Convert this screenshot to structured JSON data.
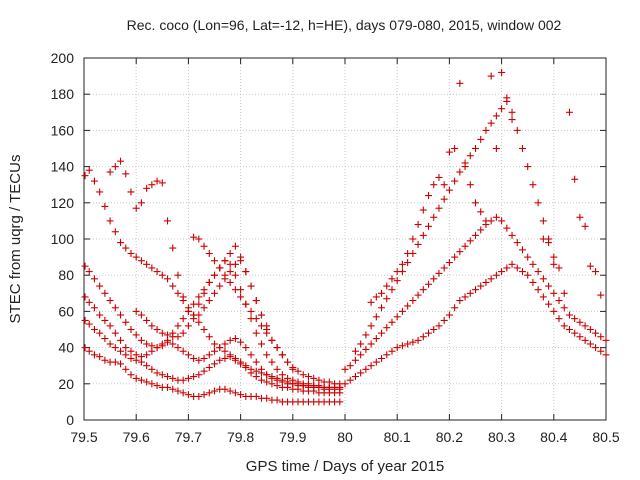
{
  "chart_data": {
    "type": "scatter",
    "title": "Rec. coco (Lon=96, Lat=-12, h=HE), days 079-080, 2015, window 002",
    "xlabel": "GPS time / Days of year 2015",
    "ylabel": "STEC from uqrg / TECUs",
    "xlim": [
      79.5,
      80.5
    ],
    "ylim": [
      0,
      200
    ],
    "xticks": [
      "79.5",
      "79.6",
      "79.7",
      "79.8",
      "79.9",
      "80",
      "80.1",
      "80.2",
      "80.3",
      "80.4",
      "80.5"
    ],
    "yticks": [
      "0",
      "20",
      "40",
      "60",
      "80",
      "100",
      "120",
      "140",
      "160",
      "180",
      "200"
    ],
    "grid": true,
    "marker": "+",
    "color": "#cc0000",
    "series": [
      {
        "x": [
          79.502,
          79.51,
          79.52,
          79.53,
          79.54,
          79.55,
          79.56,
          79.57,
          79.58,
          79.59,
          79.6,
          79.61,
          79.62,
          79.63,
          79.64,
          79.65,
          79.66,
          79.67,
          79.68,
          79.69,
          79.7,
          79.71,
          79.72,
          79.73,
          79.74,
          79.75,
          79.76,
          79.77,
          79.78,
          79.79,
          79.8,
          79.81,
          79.82,
          79.83,
          79.84,
          79.85,
          79.86,
          79.87,
          79.88,
          79.89,
          79.9,
          79.91,
          79.92,
          79.93,
          79.94,
          79.95,
          79.96,
          79.97,
          79.98,
          79.99
        ],
        "y": [
          40,
          38,
          36,
          35,
          33,
          32,
          32,
          31,
          28,
          25,
          23,
          22,
          21,
          20,
          19,
          18,
          18,
          17,
          16,
          15,
          14,
          13,
          13,
          14,
          15,
          16,
          17,
          17,
          16,
          15,
          14,
          13,
          13,
          13,
          12,
          12,
          11,
          11,
          10,
          10,
          10,
          10,
          10,
          10,
          10,
          10,
          10,
          10,
          10,
          10
        ]
      },
      {
        "x": [
          79.502,
          79.51,
          79.52,
          79.53,
          79.54,
          79.55,
          79.56,
          79.57,
          79.58,
          79.59,
          79.6,
          79.61,
          79.62,
          79.63,
          79.64,
          79.65,
          79.66,
          79.67,
          79.68,
          79.69,
          79.7,
          79.71,
          79.72,
          79.73,
          79.74,
          79.75,
          79.76,
          79.77,
          79.78,
          79.79,
          79.8,
          79.81,
          79.82,
          79.83,
          79.84,
          79.85,
          79.86,
          79.87,
          79.88,
          79.89,
          79.9,
          79.91,
          79.92,
          79.93,
          79.94,
          79.95,
          79.96,
          79.97,
          79.98,
          79.99
        ],
        "y": [
          55,
          53,
          50,
          48,
          45,
          42,
          40,
          38,
          36,
          34,
          33,
          32,
          30,
          28,
          26,
          25,
          24,
          23,
          22,
          22,
          23,
          24,
          25,
          27,
          29,
          31,
          33,
          34,
          35,
          33,
          31,
          29,
          26,
          24,
          22,
          21,
          20,
          19,
          18,
          18,
          17,
          17,
          16,
          16,
          16,
          15,
          15,
          15,
          15,
          15
        ]
      },
      {
        "x": [
          79.502,
          79.51,
          79.52,
          79.53,
          79.54,
          79.55,
          79.56,
          79.57,
          79.58,
          79.59,
          79.6,
          79.61,
          79.62,
          79.63,
          79.64,
          79.65,
          79.66,
          79.67,
          79.68,
          79.69,
          79.7,
          79.71,
          79.72,
          79.73,
          79.74,
          79.75,
          79.76,
          79.77,
          79.78,
          79.79,
          79.8,
          79.81,
          79.82,
          79.83,
          79.84,
          79.85,
          79.86,
          79.87,
          79.88,
          79.89,
          79.9,
          79.91,
          79.92,
          79.93,
          79.94,
          79.95,
          79.96,
          79.97,
          79.98,
          79.99
        ],
        "y": [
          68,
          65,
          62,
          58,
          55,
          52,
          48,
          44,
          40,
          38,
          36,
          35,
          36,
          38,
          40,
          42,
          43,
          42,
          40,
          38,
          36,
          34,
          33,
          34,
          36,
          38,
          40,
          42,
          44,
          45,
          43,
          40,
          36,
          32,
          28,
          25,
          23,
          22,
          21,
          20,
          20,
          19,
          19,
          18,
          18,
          18,
          17,
          17,
          17,
          17
        ]
      },
      {
        "x": [
          79.502,
          79.51,
          79.52,
          79.53,
          79.54,
          79.55,
          79.56,
          79.57,
          79.58,
          79.59,
          79.6,
          79.61,
          79.62,
          79.63,
          79.64,
          79.65,
          79.66,
          79.67,
          79.68,
          79.69,
          79.7,
          79.71,
          79.72,
          79.73,
          79.74,
          79.75,
          79.76,
          79.77,
          79.78,
          79.79,
          79.8,
          79.81,
          79.82,
          79.83,
          79.84,
          79.85,
          79.86,
          79.87,
          79.88,
          79.89,
          79.9,
          79.91,
          79.92,
          79.93,
          79.94,
          79.95,
          79.96,
          79.97,
          79.98,
          79.99
        ],
        "y": [
          85,
          82,
          78,
          74,
          70,
          66,
          62,
          58,
          54,
          50,
          47,
          44,
          42,
          41,
          40,
          41,
          44,
          48,
          52,
          56,
          60,
          64,
          68,
          72,
          76,
          80,
          84,
          88,
          86,
          80,
          72,
          64,
          56,
          48,
          42,
          36,
          32,
          28,
          25,
          23,
          22,
          21,
          20,
          20,
          19,
          19,
          18,
          18,
          18,
          18
        ]
      },
      {
        "x": [
          79.502,
          79.51,
          79.52,
          79.53,
          79.54,
          79.55,
          79.56,
          79.57,
          79.58,
          79.59,
          79.6,
          79.61,
          79.62,
          79.63,
          79.64,
          79.65,
          79.66,
          79.67,
          79.68,
          79.69,
          79.7,
          79.71,
          79.72,
          79.73,
          79.74,
          79.75,
          79.76,
          79.77,
          79.78,
          79.79,
          79.8,
          79.81,
          79.82,
          79.83,
          79.84,
          79.85,
          79.86,
          79.87,
          79.88,
          79.89,
          79.9,
          79.91,
          79.92,
          79.93,
          79.94,
          79.95,
          79.96,
          79.97,
          79.98,
          79.99
        ],
        "y": [
          135,
          138,
          132,
          126,
          118,
          110,
          104,
          98,
          95,
          92,
          90,
          88,
          86,
          84,
          82,
          80,
          78,
          74,
          70,
          66,
          62,
          58,
          54,
          50,
          46,
          42,
          40,
          38,
          36,
          34,
          32,
          30,
          28,
          27,
          26,
          25,
          24,
          23,
          22,
          21,
          20,
          20,
          19,
          19,
          19,
          18,
          18,
          18,
          18,
          18
        ]
      },
      {
        "x": [
          79.55,
          79.56,
          79.57,
          79.58,
          79.59,
          79.6,
          79.61,
          79.62,
          79.63,
          79.64,
          79.65,
          79.66,
          79.67,
          79.68,
          79.69,
          79.7,
          79.71,
          79.72,
          79.73,
          79.74,
          79.75,
          79.76,
          79.77,
          79.78,
          79.79,
          79.8,
          79.81,
          79.82,
          79.83,
          79.84,
          79.85
        ],
        "y": [
          137,
          140,
          143,
          136,
          126,
          117,
          120,
          128,
          130,
          132,
          131,
          110,
          95,
          80,
          68,
          60,
          56,
          58,
          62,
          66,
          70,
          74,
          78,
          82,
          86,
          88,
          82,
          74,
          66,
          58,
          52
        ]
      },
      {
        "x": [
          79.6,
          79.61,
          79.62,
          79.63,
          79.64,
          79.65,
          79.66,
          79.67,
          79.68,
          79.69,
          79.7,
          79.71,
          79.72,
          79.73,
          79.74,
          79.75,
          79.76,
          79.77,
          79.78,
          79.79,
          79.8,
          79.81,
          79.82,
          79.83,
          79.84,
          79.85,
          79.86,
          79.87,
          79.88,
          79.89,
          79.9,
          79.91,
          79.92,
          79.93,
          79.94,
          79.95,
          79.96,
          79.97,
          79.98,
          79.99
        ],
        "y": [
          60,
          58,
          55,
          52,
          50,
          48,
          47,
          46,
          46,
          48,
          52,
          58,
          64,
          70,
          76,
          80,
          84,
          88,
          92,
          96,
          90,
          82,
          74,
          66,
          58,
          50,
          44,
          40,
          36,
          32,
          29,
          27,
          25,
          24,
          23,
          22,
          21,
          21,
          20,
          20
        ]
      },
      {
        "x": [
          79.71,
          79.72,
          79.73,
          79.74,
          79.75,
          79.76,
          79.77,
          79.78,
          79.79,
          79.8,
          79.81,
          79.82,
          79.83,
          79.84,
          79.85,
          79.86,
          79.87,
          79.88,
          79.89,
          79.9
        ],
        "y": [
          101,
          100,
          96,
          92,
          88,
          84,
          80,
          76,
          72,
          68,
          64,
          60,
          56,
          52,
          48,
          44,
          40,
          36,
          32,
          28
        ]
      },
      {
        "x": [
          80.0,
          80.01,
          80.02,
          80.03,
          80.04,
          80.05,
          80.06,
          80.07,
          80.08,
          80.09,
          80.1,
          80.11,
          80.12,
          80.13,
          80.14,
          80.15,
          80.16,
          80.17,
          80.18,
          80.19,
          80.2,
          80.21,
          80.22,
          80.23,
          80.24,
          80.25,
          80.26,
          80.27,
          80.28,
          80.29,
          80.3,
          80.31,
          80.32,
          80.33,
          80.34,
          80.35,
          80.36,
          80.37,
          80.38,
          80.39,
          80.4,
          80.41,
          80.42,
          80.43,
          80.44,
          80.45,
          80.46,
          80.47,
          80.48,
          80.49,
          80.5
        ],
        "y": [
          20,
          22,
          24,
          26,
          28,
          30,
          32,
          34,
          36,
          38,
          40,
          41,
          42,
          43,
          44,
          46,
          48,
          50,
          52,
          55,
          58,
          62,
          66,
          68,
          70,
          72,
          74,
          76,
          78,
          80,
          82,
          84,
          86,
          84,
          82,
          80,
          76,
          72,
          68,
          64,
          60,
          56,
          52,
          50,
          48,
          46,
          44,
          42,
          40,
          38,
          36
        ]
      },
      {
        "x": [
          80.0,
          80.01,
          80.02,
          80.03,
          80.04,
          80.05,
          80.06,
          80.07,
          80.08,
          80.09,
          80.1,
          80.11,
          80.12,
          80.13,
          80.14,
          80.15,
          80.16,
          80.17,
          80.18,
          80.19,
          80.2,
          80.21,
          80.22,
          80.23,
          80.24,
          80.25,
          80.26,
          80.27,
          80.28,
          80.29,
          80.3,
          80.31,
          80.32,
          80.33,
          80.34,
          80.35,
          80.36,
          80.37,
          80.38,
          80.39,
          80.4,
          80.41,
          80.42,
          80.43,
          80.44,
          80.45,
          80.46,
          80.47,
          80.48,
          80.49,
          80.5
        ],
        "y": [
          28,
          30,
          33,
          36,
          39,
          42,
          45,
          48,
          51,
          54,
          57,
          60,
          63,
          66,
          69,
          72,
          75,
          78,
          81,
          84,
          87,
          90,
          93,
          96,
          99,
          102,
          105,
          108,
          110,
          112,
          110,
          106,
          102,
          98,
          94,
          90,
          86,
          82,
          78,
          74,
          70,
          66,
          62,
          58,
          56,
          54,
          52,
          50,
          48,
          46,
          44
        ]
      },
      {
        "x": [
          80.02,
          80.03,
          80.04,
          80.05,
          80.06,
          80.07,
          80.08,
          80.09,
          80.1,
          80.11,
          80.12,
          80.13,
          80.14,
          80.15,
          80.16,
          80.17,
          80.18,
          80.19,
          80.2,
          80.21,
          80.22,
          80.23,
          80.24,
          80.25,
          80.26,
          80.27,
          80.28,
          80.29,
          80.3,
          80.31,
          80.32,
          80.33,
          80.34,
          80.35,
          80.36,
          80.37,
          80.38,
          80.39,
          80.4
        ],
        "y": [
          38,
          42,
          47,
          52,
          57,
          62,
          67,
          72,
          77,
          82,
          87,
          92,
          97,
          102,
          107,
          112,
          117,
          122,
          127,
          132,
          137,
          142,
          146,
          150,
          155,
          160,
          164,
          168,
          172,
          176,
          170,
          160,
          150,
          140,
          130,
          120,
          110,
          100,
          90
        ]
      },
      {
        "x": [
          80.05,
          80.06,
          80.07,
          80.08,
          80.09,
          80.1,
          80.11,
          80.12,
          80.13,
          80.14,
          80.15,
          80.16,
          80.17,
          80.18,
          80.19,
          80.2,
          80.21,
          80.22,
          80.23,
          80.24,
          80.25,
          80.26,
          80.27,
          80.28,
          80.29,
          80.3,
          80.31,
          80.32
        ],
        "y": [
          65,
          68,
          70,
          74,
          78,
          82,
          86,
          92,
          100,
          108,
          116,
          124,
          130,
          134,
          130,
          148,
          150,
          186,
          140,
          130,
          120,
          115,
          110,
          190,
          150,
          192,
          178,
          166
        ]
      },
      {
        "x": [
          80.38,
          80.39,
          80.4,
          80.41,
          80.42,
          80.43,
          80.44,
          80.45,
          80.46,
          80.47,
          80.48,
          80.49
        ],
        "y": [
          100,
          98,
          86,
          84,
          70,
          170,
          133,
          112,
          107,
          85,
          82,
          69
        ]
      }
    ]
  }
}
